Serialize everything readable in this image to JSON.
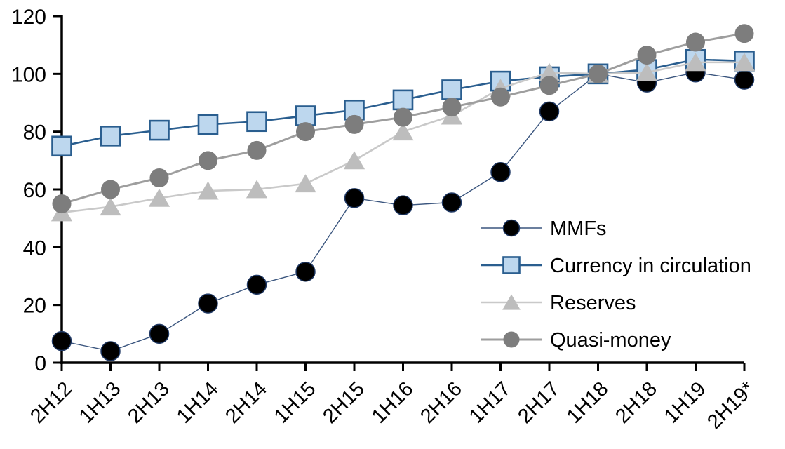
{
  "chart_data": {
    "type": "line",
    "title": "",
    "xlabel": "",
    "ylabel": "",
    "ylim": [
      0,
      120
    ],
    "y_ticks": [
      0,
      20,
      40,
      60,
      80,
      100,
      120
    ],
    "grid": false,
    "legend_position": "inside-right",
    "categories": [
      "2H12",
      "1H13",
      "2H13",
      "1H14",
      "2H14",
      "1H15",
      "2H15",
      "1H16",
      "2H16",
      "1H17",
      "2H17",
      "1H18",
      "2H18",
      "1H19",
      "2H19*"
    ],
    "series": [
      {
        "name": "MMFs",
        "marker": "circle",
        "line_color": "#3A557E",
        "line_width": 1.4,
        "marker_fill": "#000000",
        "marker_stroke": "#1F3864",
        "marker_stroke_width": 1.5,
        "values": [
          7.5,
          4,
          10,
          20.5,
          27,
          31.5,
          57,
          54.5,
          55.5,
          66,
          87,
          100,
          97,
          100.5,
          98
        ]
      },
      {
        "name": "Currency in circulation",
        "marker": "square",
        "line_color": "#2A5E8F",
        "line_width": 2.6,
        "marker_fill": "#BDD7EE",
        "marker_stroke": "#2A5E8F",
        "marker_stroke_width": 2.6,
        "values": [
          75,
          78.5,
          80.5,
          82.5,
          83.5,
          85.5,
          87.5,
          91,
          94.5,
          97.5,
          99,
          100,
          101.5,
          105,
          104.5
        ]
      },
      {
        "name": "Reserves",
        "marker": "triangle",
        "line_color": "#C9C9C9",
        "line_width": 2.6,
        "marker_fill": "#BDBDBD",
        "marker_stroke": "none",
        "marker_stroke_width": 0,
        "values": [
          52,
          54,
          57,
          59.5,
          60,
          62,
          70,
          80,
          85.5,
          95,
          100.5,
          100,
          100.5,
          104,
          104
        ]
      },
      {
        "name": "Quasi-money",
        "marker": "circle",
        "line_color": "#9E9E9E",
        "line_width": 3,
        "marker_fill": "#7D7D7D",
        "marker_stroke": "none",
        "marker_stroke_width": 0,
        "values": [
          55,
          60,
          64,
          70,
          73.5,
          80,
          82.5,
          85,
          88.5,
          92,
          96,
          100,
          106.5,
          111,
          114
        ]
      }
    ],
    "axis_color": "#000000"
  }
}
